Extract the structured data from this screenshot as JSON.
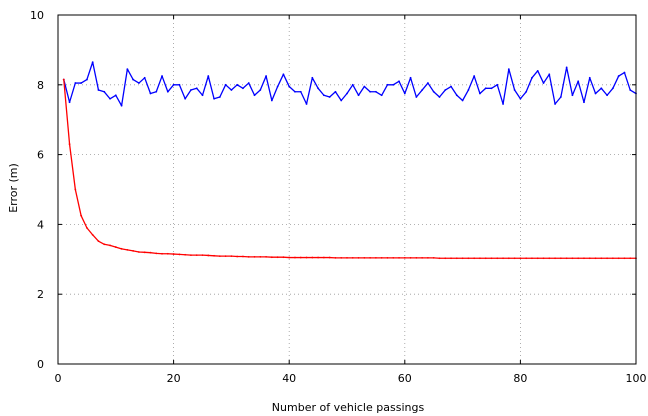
{
  "chart_data": {
    "type": "line",
    "title": "",
    "xlabel": "Number of vehicle passings",
    "ylabel": "Error (m)",
    "xlim": [
      0,
      100
    ],
    "ylim": [
      0,
      10
    ],
    "xticks": [
      0,
      20,
      40,
      60,
      80,
      100
    ],
    "yticks": [
      0,
      2,
      4,
      6,
      8,
      10
    ],
    "grid": true,
    "legend": "none",
    "series": [
      {
        "color": "#0000ff",
        "x": [
          1,
          2,
          3,
          4,
          5,
          6,
          7,
          8,
          9,
          10,
          11,
          12,
          13,
          14,
          15,
          16,
          17,
          18,
          19,
          20,
          21,
          22,
          23,
          24,
          25,
          26,
          27,
          28,
          29,
          30,
          31,
          32,
          33,
          34,
          35,
          36,
          37,
          38,
          39,
          40,
          41,
          42,
          43,
          44,
          45,
          46,
          47,
          48,
          49,
          50,
          51,
          52,
          53,
          54,
          55,
          56,
          57,
          58,
          59,
          60,
          61,
          62,
          63,
          64,
          65,
          66,
          67,
          68,
          69,
          70,
          71,
          72,
          73,
          74,
          75,
          76,
          77,
          78,
          79,
          80,
          81,
          82,
          83,
          84,
          85,
          86,
          87,
          88,
          89,
          90,
          91,
          92,
          93,
          94,
          95,
          96,
          97,
          98,
          99,
          100
        ],
        "values": [
          8.15,
          7.5,
          8.05,
          8.05,
          8.15,
          8.65,
          7.85,
          7.8,
          7.6,
          7.7,
          7.4,
          8.45,
          8.15,
          8.05,
          8.2,
          7.75,
          7.8,
          8.25,
          7.8,
          8.0,
          8.0,
          7.6,
          7.85,
          7.9,
          7.7,
          8.25,
          7.6,
          7.65,
          8.0,
          7.85,
          8.0,
          7.9,
          8.05,
          7.7,
          7.85,
          8.25,
          7.55,
          7.95,
          8.3,
          7.95,
          7.8,
          7.8,
          7.45,
          8.2,
          7.9,
          7.7,
          7.65,
          7.8,
          7.55,
          7.75,
          8.0,
          7.7,
          7.95,
          7.8,
          7.8,
          7.7,
          8.0,
          8.0,
          8.1,
          7.75,
          8.2,
          7.65,
          7.85,
          8.05,
          7.8,
          7.65,
          7.85,
          7.95,
          7.7,
          7.55,
          7.85,
          8.25,
          7.75,
          7.9,
          7.9,
          8.0,
          7.45,
          8.45,
          7.85,
          7.6,
          7.8,
          8.2,
          8.4,
          8.05,
          8.3,
          7.45,
          7.65,
          8.5,
          7.7,
          8.1,
          7.5,
          8.2,
          7.75,
          7.9,
          7.7,
          7.9,
          8.25,
          8.35,
          7.85,
          7.75
        ]
      },
      {
        "color": "#ff0000",
        "x": [
          1,
          2,
          3,
          4,
          5,
          6,
          7,
          8,
          9,
          10,
          11,
          12,
          13,
          14,
          15,
          16,
          17,
          18,
          19,
          20,
          21,
          22,
          23,
          24,
          25,
          26,
          27,
          28,
          29,
          30,
          31,
          32,
          33,
          34,
          35,
          36,
          37,
          38,
          39,
          40,
          41,
          42,
          43,
          44,
          45,
          46,
          47,
          48,
          49,
          50,
          51,
          52,
          53,
          54,
          55,
          56,
          57,
          58,
          59,
          60,
          61,
          62,
          63,
          64,
          65,
          66,
          67,
          68,
          69,
          70,
          71,
          72,
          73,
          74,
          75,
          76,
          77,
          78,
          79,
          80,
          81,
          82,
          83,
          84,
          85,
          86,
          87,
          88,
          89,
          90,
          91,
          92,
          93,
          94,
          95,
          96,
          97,
          98,
          99,
          100
        ],
        "values": [
          8.15,
          6.3,
          5.0,
          4.25,
          3.9,
          3.7,
          3.52,
          3.43,
          3.4,
          3.35,
          3.3,
          3.27,
          3.24,
          3.21,
          3.2,
          3.19,
          3.17,
          3.16,
          3.16,
          3.15,
          3.14,
          3.13,
          3.12,
          3.12,
          3.12,
          3.11,
          3.1,
          3.09,
          3.09,
          3.09,
          3.08,
          3.08,
          3.07,
          3.07,
          3.07,
          3.07,
          3.06,
          3.06,
          3.06,
          3.05,
          3.05,
          3.05,
          3.05,
          3.05,
          3.05,
          3.05,
          3.05,
          3.04,
          3.04,
          3.04,
          3.04,
          3.04,
          3.04,
          3.04,
          3.04,
          3.04,
          3.04,
          3.04,
          3.04,
          3.04,
          3.04,
          3.04,
          3.04,
          3.04,
          3.04,
          3.03,
          3.03,
          3.03,
          3.03,
          3.03,
          3.03,
          3.03,
          3.03,
          3.03,
          3.03,
          3.03,
          3.03,
          3.03,
          3.03,
          3.03,
          3.03,
          3.03,
          3.03,
          3.03,
          3.03,
          3.03,
          3.03,
          3.03,
          3.03,
          3.03,
          3.03,
          3.03,
          3.03,
          3.03,
          3.03,
          3.03,
          3.03,
          3.03,
          3.03,
          3.03
        ]
      }
    ]
  }
}
